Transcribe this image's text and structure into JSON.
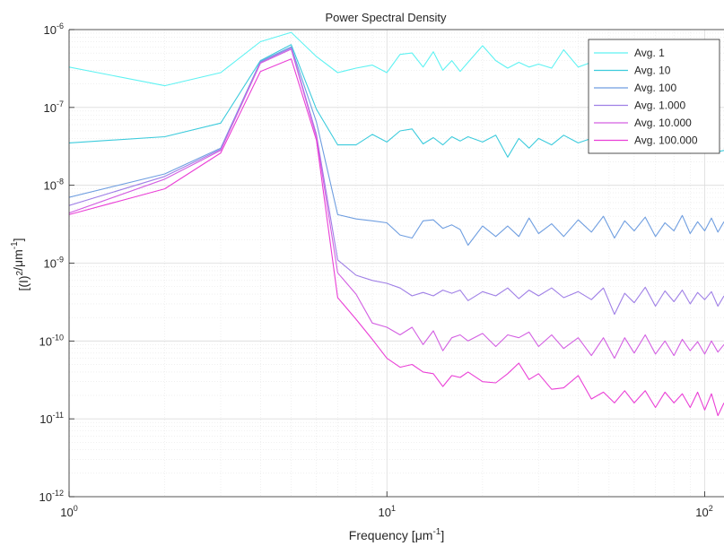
{
  "chart_data": {
    "type": "line",
    "title": "Power Spectral Density",
    "xlabel": "Frequency [",
    "xlabel_unit": "μm",
    "xlabel_exp": "-1",
    "xlabel_close": "]",
    "ylabel_base": "[(I)",
    "ylabel_sq": "2",
    "ylabel_unit": "/μm",
    "ylabel_exp": "-1",
    "ylabel_close": "]",
    "x_scale": "log",
    "y_scale": "log",
    "xlim": [
      1,
      115
    ],
    "ylim": [
      1e-12,
      1e-06
    ],
    "x_tick_labels": [
      {
        "base": "10",
        "exp": "0",
        "value": 1
      },
      {
        "base": "10",
        "exp": "1",
        "value": 10
      },
      {
        "base": "10",
        "exp": "2",
        "value": 100
      }
    ],
    "y_tick_labels": [
      {
        "base": "10",
        "exp": "-6",
        "value": 1e-06
      },
      {
        "base": "10",
        "exp": "-7",
        "value": 1e-07
      },
      {
        "base": "10",
        "exp": "-8",
        "value": 1e-08
      },
      {
        "base": "10",
        "exp": "-9",
        "value": 1e-09
      },
      {
        "base": "10",
        "exp": "-10",
        "value": 1e-10
      },
      {
        "base": "10",
        "exp": "-11",
        "value": 1e-11
      },
      {
        "base": "10",
        "exp": "-12",
        "value": 1e-12
      }
    ],
    "grid": true,
    "legend_position": "top-right",
    "series": [
      {
        "name": "Avg. 1",
        "color": "#5ef2f2",
        "points": [
          [
            1,
            3.3e-07
          ],
          [
            2,
            1.9e-07
          ],
          [
            3,
            2.8e-07
          ],
          [
            4,
            7e-07
          ],
          [
            5,
            9.2e-07
          ],
          [
            6,
            4.5e-07
          ],
          [
            7,
            2.8e-07
          ],
          [
            8,
            3.2e-07
          ],
          [
            9,
            3.5e-07
          ],
          [
            10,
            2.8e-07
          ],
          [
            11,
            4.8e-07
          ],
          [
            12,
            5e-07
          ],
          [
            13,
            3.3e-07
          ],
          [
            14,
            5.2e-07
          ],
          [
            15,
            3e-07
          ],
          [
            16,
            4e-07
          ],
          [
            17,
            2.9e-07
          ],
          [
            18,
            3.8e-07
          ],
          [
            20,
            6.2e-07
          ],
          [
            22,
            4e-07
          ],
          [
            24,
            3.2e-07
          ],
          [
            26,
            3.8e-07
          ],
          [
            28,
            3.3e-07
          ],
          [
            30,
            3.6e-07
          ],
          [
            33,
            3.2e-07
          ],
          [
            36,
            5.5e-07
          ],
          [
            40,
            3.3e-07
          ],
          [
            44,
            3.8e-07
          ]
        ]
      },
      {
        "name": "Avg. 10",
        "color": "#3ccbdc",
        "points": [
          [
            1,
            3.5e-08
          ],
          [
            2,
            4.2e-08
          ],
          [
            3,
            6.3e-08
          ],
          [
            4,
            4e-07
          ],
          [
            5,
            6.4e-07
          ],
          [
            6,
            9.5e-08
          ],
          [
            7,
            3.3e-08
          ],
          [
            8,
            3.3e-08
          ],
          [
            9,
            4.5e-08
          ],
          [
            10,
            3.6e-08
          ],
          [
            11,
            5e-08
          ],
          [
            12,
            5.3e-08
          ],
          [
            13,
            3.4e-08
          ],
          [
            14,
            4.1e-08
          ],
          [
            15,
            3.3e-08
          ],
          [
            16,
            4.2e-08
          ],
          [
            17,
            3.7e-08
          ],
          [
            18,
            4.2e-08
          ],
          [
            20,
            3.6e-08
          ],
          [
            22,
            4.4e-08
          ],
          [
            24,
            2.3e-08
          ],
          [
            26,
            4e-08
          ],
          [
            28,
            3e-08
          ],
          [
            30,
            4e-08
          ],
          [
            33,
            3.3e-08
          ],
          [
            36,
            4.4e-08
          ],
          [
            40,
            3.5e-08
          ],
          [
            44,
            4e-08
          ],
          [
            50,
            3.2e-08
          ],
          [
            55,
            3.8e-08
          ],
          [
            60,
            3e-08
          ],
          [
            66,
            3.6e-08
          ],
          [
            72,
            3.2e-08
          ],
          [
            80,
            2.8e-08
          ],
          [
            88,
            2.6e-08
          ],
          [
            95,
            3e-08
          ],
          [
            105,
            2.6e-08
          ],
          [
            115,
            2.8e-08
          ]
        ]
      },
      {
        "name": "Avg. 100",
        "color": "#6f9ee0",
        "points": [
          [
            1,
            7e-09
          ],
          [
            2,
            1.4e-08
          ],
          [
            3,
            3e-08
          ],
          [
            4,
            3.9e-07
          ],
          [
            5,
            6e-07
          ],
          [
            6,
            6.5e-08
          ],
          [
            7,
            4.2e-09
          ],
          [
            8,
            3.7e-09
          ],
          [
            9,
            3.5e-09
          ],
          [
            10,
            3.3e-09
          ],
          [
            11,
            2.3e-09
          ],
          [
            12,
            2.1e-09
          ],
          [
            13,
            3.5e-09
          ],
          [
            14,
            3.6e-09
          ],
          [
            15,
            2.8e-09
          ],
          [
            16,
            3.1e-09
          ],
          [
            17,
            2.7e-09
          ],
          [
            18,
            1.7e-09
          ],
          [
            20,
            3e-09
          ],
          [
            22,
            2.2e-09
          ],
          [
            24,
            3e-09
          ],
          [
            26,
            2.2e-09
          ],
          [
            28,
            3.8e-09
          ],
          [
            30,
            2.4e-09
          ],
          [
            33,
            3.2e-09
          ],
          [
            36,
            2.2e-09
          ],
          [
            40,
            3.6e-09
          ],
          [
            44,
            2.5e-09
          ],
          [
            48,
            4e-09
          ],
          [
            52,
            2.1e-09
          ],
          [
            56,
            3.5e-09
          ],
          [
            60,
            2.6e-09
          ],
          [
            65,
            3.9e-09
          ],
          [
            70,
            2.2e-09
          ],
          [
            75,
            3.3e-09
          ],
          [
            80,
            2.6e-09
          ],
          [
            85,
            4.1e-09
          ],
          [
            90,
            2.4e-09
          ],
          [
            95,
            3.4e-09
          ],
          [
            100,
            2.6e-09
          ],
          [
            105,
            3.8e-09
          ],
          [
            110,
            2.5e-09
          ],
          [
            115,
            3.4e-09
          ]
        ]
      },
      {
        "name": "Avg. 1.000",
        "color": "#9f7fe6",
        "points": [
          [
            1,
            5.5e-09
          ],
          [
            2,
            1.3e-08
          ],
          [
            3,
            2.9e-08
          ],
          [
            4,
            3.8e-07
          ],
          [
            5,
            5.8e-07
          ],
          [
            6,
            4.5e-08
          ],
          [
            7,
            1.1e-09
          ],
          [
            8,
            7e-10
          ],
          [
            9,
            6e-10
          ],
          [
            10,
            5.5e-10
          ],
          [
            11,
            4.8e-10
          ],
          [
            12,
            3.8e-10
          ],
          [
            13,
            4.2e-10
          ],
          [
            14,
            3.8e-10
          ],
          [
            15,
            4.5e-10
          ],
          [
            16,
            4.1e-10
          ],
          [
            17,
            4.5e-10
          ],
          [
            18,
            3.3e-10
          ],
          [
            20,
            4.3e-10
          ],
          [
            22,
            3.8e-10
          ],
          [
            24,
            4.8e-10
          ],
          [
            26,
            3.5e-10
          ],
          [
            28,
            4.5e-10
          ],
          [
            30,
            3.8e-10
          ],
          [
            33,
            4.8e-10
          ],
          [
            36,
            3.6e-10
          ],
          [
            40,
            4.3e-10
          ],
          [
            44,
            3.4e-10
          ],
          [
            48,
            4.8e-10
          ],
          [
            52,
            2.2e-10
          ],
          [
            56,
            4.1e-10
          ],
          [
            60,
            3.1e-10
          ],
          [
            65,
            4.9e-10
          ],
          [
            70,
            2.8e-10
          ],
          [
            75,
            4.4e-10
          ],
          [
            80,
            3.2e-10
          ],
          [
            85,
            4.5e-10
          ],
          [
            90,
            3e-10
          ],
          [
            95,
            4.2e-10
          ],
          [
            100,
            3.4e-10
          ],
          [
            105,
            4.3e-10
          ],
          [
            110,
            2.8e-10
          ],
          [
            115,
            3.8e-10
          ]
        ]
      },
      {
        "name": "Avg. 10.000",
        "color": "#d35fe2",
        "points": [
          [
            1,
            4.4e-09
          ],
          [
            2,
            1.2e-08
          ],
          [
            3,
            2.8e-08
          ],
          [
            4,
            3.7e-07
          ],
          [
            5,
            5.6e-07
          ],
          [
            6,
            4.2e-08
          ],
          [
            7,
            7.5e-10
          ],
          [
            8,
            4e-10
          ],
          [
            9,
            1.7e-10
          ],
          [
            10,
            1.5e-10
          ],
          [
            11,
            1.2e-10
          ],
          [
            12,
            1.5e-10
          ],
          [
            13,
            9e-11
          ],
          [
            14,
            1.35e-10
          ],
          [
            15,
            7.5e-11
          ],
          [
            16,
            1.1e-10
          ],
          [
            17,
            1.2e-10
          ],
          [
            18,
            1e-10
          ],
          [
            20,
            1.25e-10
          ],
          [
            22,
            8.5e-11
          ],
          [
            24,
            1.2e-10
          ],
          [
            26,
            1.1e-10
          ],
          [
            28,
            1.3e-10
          ],
          [
            30,
            8.5e-11
          ],
          [
            33,
            1.2e-10
          ],
          [
            36,
            8e-11
          ],
          [
            40,
            1.1e-10
          ],
          [
            44,
            6.5e-11
          ],
          [
            48,
            1.1e-10
          ],
          [
            52,
            6e-11
          ],
          [
            56,
            1.1e-10
          ],
          [
            60,
            7e-11
          ],
          [
            65,
            1.2e-10
          ],
          [
            70,
            6.8e-11
          ],
          [
            75,
            1e-10
          ],
          [
            80,
            6.5e-11
          ],
          [
            85,
            1.05e-10
          ],
          [
            90,
            7.5e-11
          ],
          [
            95,
            9.8e-11
          ],
          [
            100,
            6.8e-11
          ],
          [
            105,
            1e-10
          ],
          [
            110,
            7.2e-11
          ],
          [
            115,
            9e-11
          ]
        ]
      },
      {
        "name": "Avg. 100.000",
        "color": "#ea3fd6",
        "points": [
          [
            1,
            4.2e-09
          ],
          [
            2,
            9e-09
          ],
          [
            3,
            2.6e-08
          ],
          [
            4,
            2.9e-07
          ],
          [
            5,
            4.2e-07
          ],
          [
            6,
            3.8e-08
          ],
          [
            7,
            3.6e-10
          ],
          [
            8,
            1.9e-10
          ],
          [
            9,
            1.05e-10
          ],
          [
            10,
            6e-11
          ],
          [
            11,
            4.6e-11
          ],
          [
            12,
            5e-11
          ],
          [
            13,
            4e-11
          ],
          [
            14,
            3.8e-11
          ],
          [
            15,
            2.6e-11
          ],
          [
            16,
            3.6e-11
          ],
          [
            17,
            3.4e-11
          ],
          [
            18,
            4e-11
          ],
          [
            20,
            3e-11
          ],
          [
            22,
            2.9e-11
          ],
          [
            24,
            3.8e-11
          ],
          [
            26,
            5.2e-11
          ],
          [
            28,
            3.2e-11
          ],
          [
            30,
            3.8e-11
          ],
          [
            33,
            2.4e-11
          ],
          [
            36,
            2.5e-11
          ],
          [
            40,
            3.6e-11
          ],
          [
            44,
            1.8e-11
          ],
          [
            48,
            2.2e-11
          ],
          [
            52,
            1.6e-11
          ],
          [
            56,
            2.3e-11
          ],
          [
            60,
            1.6e-11
          ],
          [
            65,
            2.3e-11
          ],
          [
            70,
            1.4e-11
          ],
          [
            75,
            2.2e-11
          ],
          [
            80,
            1.6e-11
          ],
          [
            85,
            2.1e-11
          ],
          [
            90,
            1.4e-11
          ],
          [
            95,
            2.2e-11
          ],
          [
            100,
            1.3e-11
          ],
          [
            105,
            2.1e-11
          ],
          [
            110,
            1.1e-11
          ],
          [
            115,
            1.6e-11
          ]
        ]
      }
    ]
  }
}
